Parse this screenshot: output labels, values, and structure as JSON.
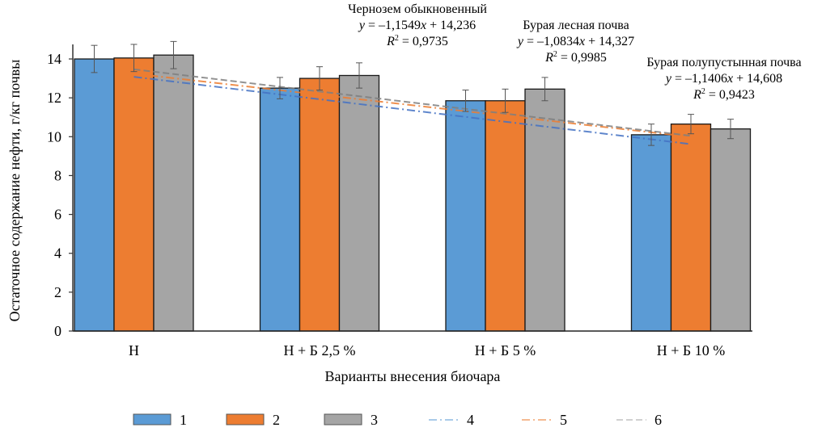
{
  "chart_data": {
    "type": "bar",
    "title": "",
    "xlabel": "Варианты внесения биочара",
    "ylabel": "Остаточное содержание нефти, г/кг почвы",
    "ylim": [
      0,
      14.5
    ],
    "yticks": [
      0,
      2,
      4,
      6,
      8,
      10,
      12,
      14
    ],
    "grid": false,
    "legend_position": "bottom",
    "categories": [
      "Н",
      "Н + Б 2,5 %",
      "Н + Б 5 %",
      "Н + Б 10 %"
    ],
    "series": [
      {
        "name": "1",
        "kind": "bar",
        "color": "#5B9BD5",
        "values": [
          14.0,
          12.5,
          11.85,
          10.1
        ],
        "errors": [
          0.7,
          0.55,
          0.55,
          0.55
        ]
      },
      {
        "name": "2",
        "kind": "bar",
        "color": "#ED7D31",
        "values": [
          14.05,
          13.0,
          11.85,
          10.65
        ],
        "errors": [
          0.7,
          0.6,
          0.6,
          0.5
        ]
      },
      {
        "name": "3",
        "kind": "bar",
        "color": "#A5A5A5",
        "values": [
          14.2,
          13.15,
          12.45,
          10.4
        ],
        "errors": [
          0.7,
          0.65,
          0.6,
          0.5
        ]
      }
    ],
    "trendlines": [
      {
        "name": "4",
        "of_series": "1",
        "color": "#4472C4",
        "dash": "dash-dot",
        "slope": -1.1549,
        "intercept": 14.236,
        "r2": 0.9735
      },
      {
        "name": "5",
        "of_series": "2",
        "color": "#ED7D31",
        "dash": "dash-dot",
        "slope": -1.0834,
        "intercept": 14.327,
        "r2": 0.9985
      },
      {
        "name": "6",
        "of_series": "3",
        "color": "#7F7F7F",
        "dash": "dash",
        "slope": -1.1406,
        "intercept": 14.608,
        "r2": 0.9423
      }
    ],
    "annotations": [
      {
        "id": "a1",
        "title": "Чернозем обыкновенный",
        "eq_prefix": "y",
        "eq_body": " = –1,1549",
        "eq_x": "x",
        "eq_tail": " + 14,236",
        "r_label": "R",
        "r_sup": "2",
        "r_value": " = 0,9735"
      },
      {
        "id": "a2",
        "title": "Бурая лесная почва",
        "eq_prefix": "y",
        "eq_body": " = –1,0834",
        "eq_x": "x",
        "eq_tail": " + 14,327",
        "r_label": "R",
        "r_sup": "2",
        "r_value": " = 0,9985"
      },
      {
        "id": "a3",
        "title": "Бурая полупустынная почва",
        "eq_prefix": "y",
        "eq_body": " = –1,1406",
        "eq_x": "x",
        "eq_tail": " + 14,608",
        "r_label": "R",
        "r_sup": "2",
        "r_value": " = 0,9423"
      }
    ],
    "legend": [
      {
        "label": "1",
        "type": "box",
        "color": "#5B9BD5"
      },
      {
        "label": "2",
        "type": "box",
        "color": "#ED7D31"
      },
      {
        "label": "3",
        "type": "box",
        "color": "#A5A5A5"
      },
      {
        "label": "4",
        "type": "line",
        "color": "#9DC3E6",
        "dash": "dash-dot"
      },
      {
        "label": "5",
        "type": "line",
        "color": "#F4B183",
        "dash": "dash-dot"
      },
      {
        "label": "6",
        "type": "line",
        "color": "#C9C9C9",
        "dash": "dash"
      }
    ]
  }
}
